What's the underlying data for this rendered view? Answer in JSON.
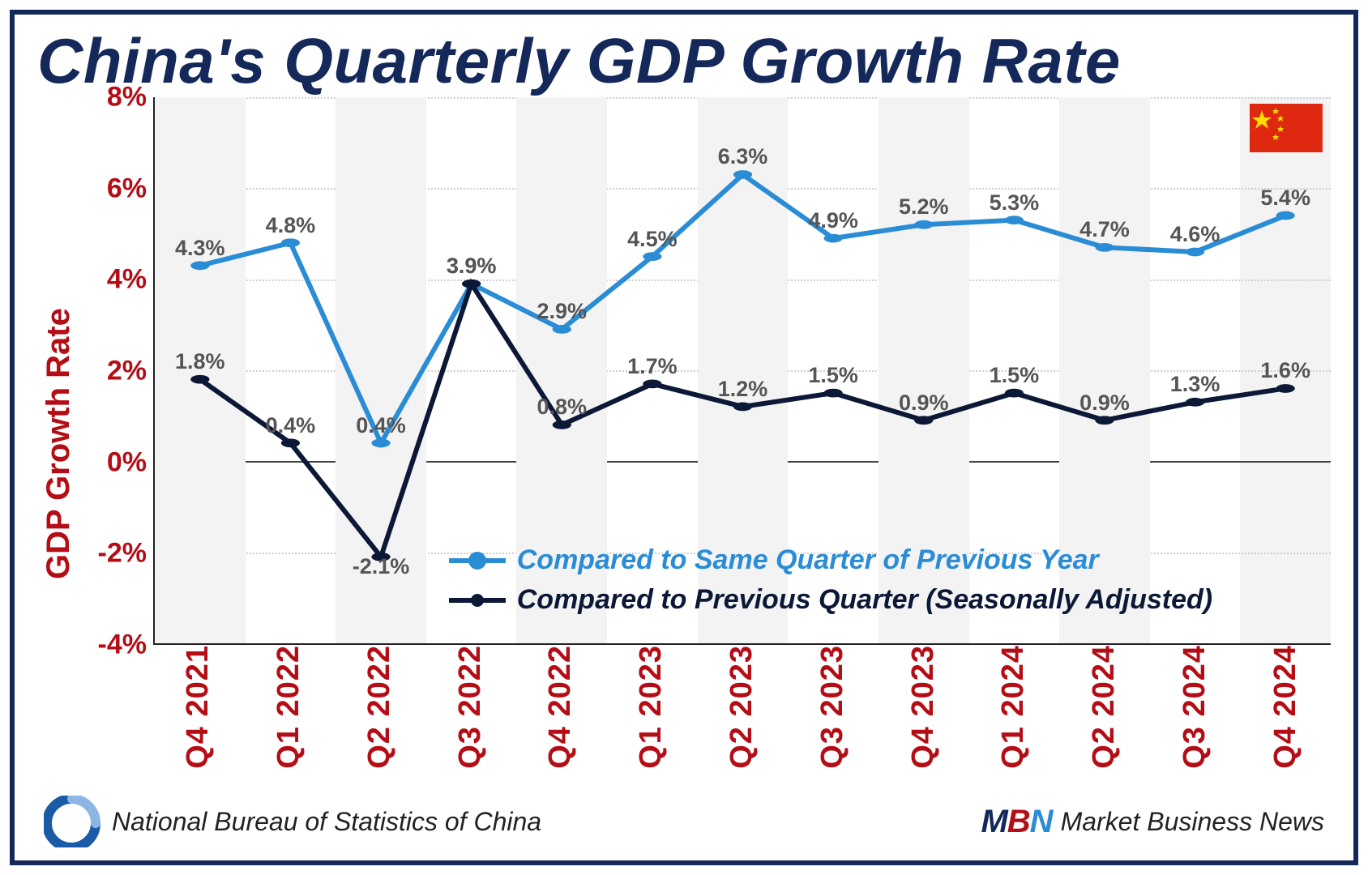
{
  "title": "China's Quarterly GDP Growth Rate",
  "ylabel": "GDP Growth Rate",
  "chart": {
    "type": "line",
    "background_color": "#ffffff",
    "band_color": "#f3f3f3",
    "grid_color": "#cfcfcf",
    "axis_color": "#222222",
    "zero_line_color": "#444444",
    "ylim": [
      -4,
      8
    ],
    "ytick_step": 2,
    "yticks": [
      "-4%",
      "-2%",
      "0%",
      "2%",
      "4%",
      "6%",
      "8%"
    ],
    "categories": [
      "Q4 2021",
      "Q1 2022",
      "Q2 2022",
      "Q3 2022",
      "Q4 2022",
      "Q1 2023",
      "Q2 2023",
      "Q3 2023",
      "Q4 2023",
      "Q1 2024",
      "Q2 2024",
      "Q3 2024",
      "Q4 2024"
    ],
    "series": [
      {
        "id": "yoy",
        "label": "Compared to Same Quarter of Previous Year",
        "color": "#2b8cd6",
        "line_width": 6,
        "marker_size": 9,
        "values": [
          4.3,
          4.8,
          0.4,
          3.9,
          2.9,
          4.5,
          6.3,
          4.9,
          5.2,
          5.3,
          4.7,
          4.6,
          5.4
        ],
        "labels": [
          "4.3%",
          "4.8%",
          "0.4%",
          "3.9%",
          "2.9%",
          "4.5%",
          "6.3%",
          "4.9%",
          "5.2%",
          "5.3%",
          "4.7%",
          "4.6%",
          "5.4%"
        ],
        "label_color": "#555555"
      },
      {
        "id": "qoq",
        "label": "Compared to Previous Quarter (Seasonally Adjusted)",
        "color": "#0b1836",
        "line_width": 6,
        "marker_size": 9,
        "values": [
          1.8,
          0.4,
          -2.1,
          3.9,
          0.8,
          1.7,
          1.2,
          1.5,
          0.9,
          1.5,
          0.9,
          1.3,
          1.6
        ],
        "labels": [
          "1.8%",
          "0.4%",
          "-2.1%",
          "3.9%",
          "0.8%",
          "1.7%",
          "1.2%",
          "1.5%",
          "0.9%",
          "1.5%",
          "0.9%",
          "1.3%",
          "1.6%"
        ],
        "label_color": "#555555"
      }
    ]
  },
  "legend": {
    "items": [
      {
        "text": "Compared to Same Quarter of Previous Year",
        "color": "#2b8cd6"
      },
      {
        "text": "Compared to Previous Quarter (Seasonally Adjusted)",
        "color": "#0b1836"
      }
    ]
  },
  "flag": {
    "bg": "#de2910",
    "star": "#ffde00"
  },
  "source_left": "National Bureau of Statistics of China",
  "source_right": "Market Business News",
  "mbn": {
    "m": "M",
    "b": "B",
    "n": "N"
  },
  "title_fontsize": 78,
  "axis_label_fontsize": 40,
  "tick_fontsize": 34,
  "data_label_fontsize": 27
}
